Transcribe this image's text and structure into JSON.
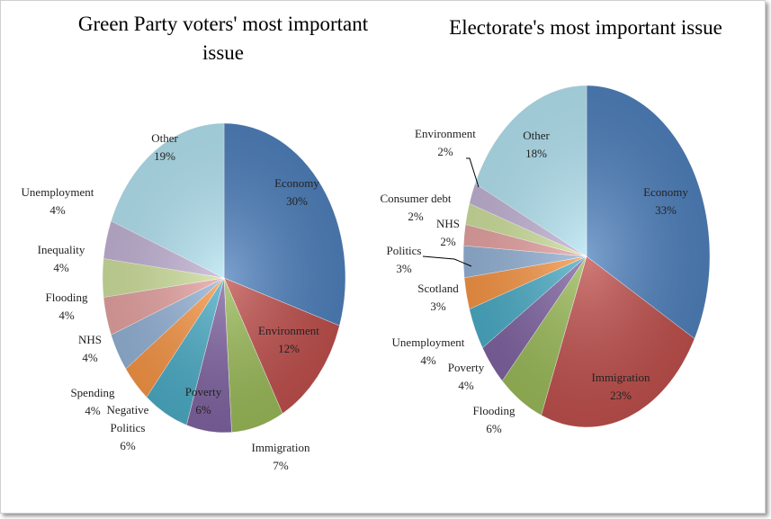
{
  "chart_data": [
    {
      "type": "pie",
      "title_line1": "Green Party voters' most important",
      "title_line2": "issue",
      "slices": [
        {
          "label": "Economy",
          "value": 30,
          "color": "#4f81bd"
        },
        {
          "label": "Environment",
          "value": 12,
          "color": "#c0504d"
        },
        {
          "label": "Immigration",
          "value": 7,
          "color": "#9bbb59"
        },
        {
          "label": "Poverty",
          "value": 6,
          "color": "#8064a2"
        },
        {
          "label": "Negative Politics",
          "value": 6,
          "color": "#4bacc6"
        },
        {
          "label": "Spending",
          "value": 4,
          "color": "#f79646"
        },
        {
          "label": "NHS",
          "value": 4,
          "color": "#95b3d7"
        },
        {
          "label": "Flooding",
          "value": 4,
          "color": "#e6a3a2"
        },
        {
          "label": "Inequality",
          "value": 4,
          "color": "#cfe09d"
        },
        {
          "label": "Unemployment",
          "value": 4,
          "color": "#c3b4d6"
        },
        {
          "label": "Other",
          "value": 19,
          "color": "#b4e4f2"
        }
      ]
    },
    {
      "type": "pie",
      "title_line1": "Electorate's most important issue",
      "title_line2": "",
      "slices": [
        {
          "label": "Economy",
          "value": 33,
          "color": "#4f81bd"
        },
        {
          "label": "Immigration",
          "value": 23,
          "color": "#c0504d"
        },
        {
          "label": "Flooding",
          "value": 6,
          "color": "#9bbb59"
        },
        {
          "label": "Poverty",
          "value": 4,
          "color": "#8064a2"
        },
        {
          "label": "Unemployment",
          "value": 4,
          "color": "#4bacc6"
        },
        {
          "label": "Scotland",
          "value": 3,
          "color": "#f79646"
        },
        {
          "label": "Politics",
          "value": 3,
          "color": "#95b3d7"
        },
        {
          "label": "NHS",
          "value": 2,
          "color": "#e6a3a2"
        },
        {
          "label": "Consumer debt",
          "value": 2,
          "color": "#cfe09d"
        },
        {
          "label": "Environment",
          "value": 2,
          "color": "#c3b4d6"
        },
        {
          "label": "Other",
          "value": 18,
          "color": "#b4e4f2"
        }
      ]
    }
  ]
}
